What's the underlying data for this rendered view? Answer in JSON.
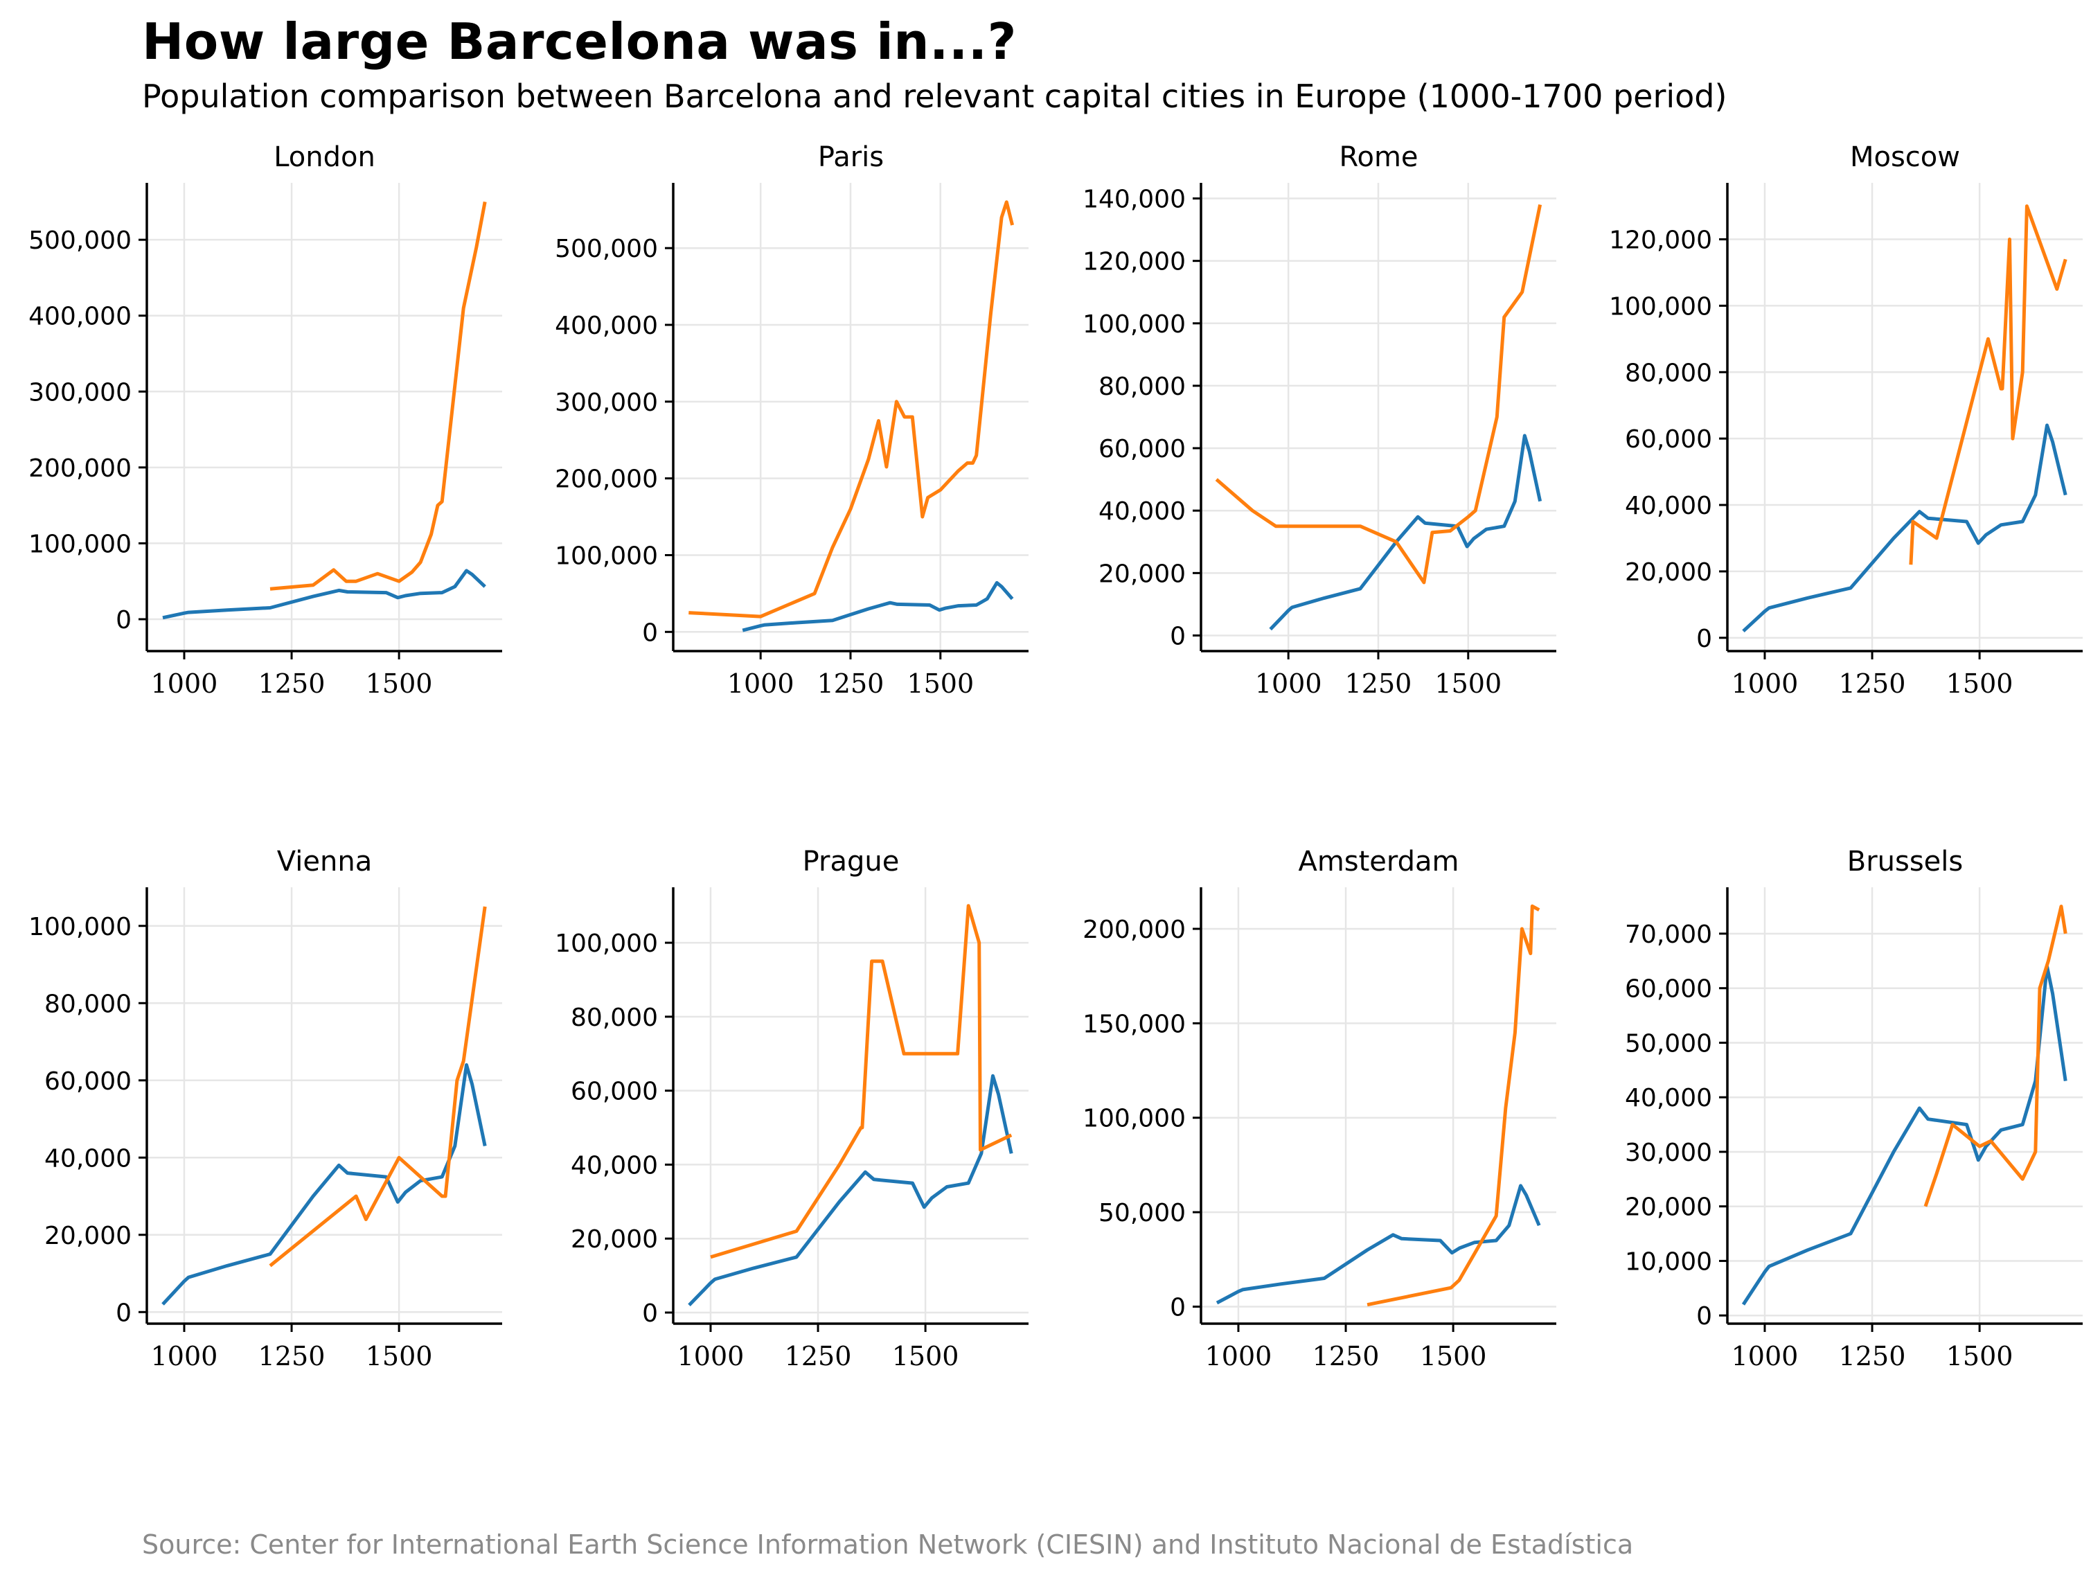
{
  "title": "How large Barcelona was in...?",
  "subtitle": "Population comparison between Barcelona and relevant capital cities in Europe (1000-1700 period)",
  "source": "Source: Center for International Earth Science Information Network (CIESIN) and Instituto Nacional de Estadística",
  "colors": {
    "barcelona": "#1f77b4",
    "city": "#ff7f0e"
  },
  "chart_data": [
    {
      "type": "line",
      "title": "London",
      "xlabel": "",
      "ylabel": "",
      "xlim": [
        913,
        1740
      ],
      "ylim": [
        -42000,
        575000
      ],
      "grid": true,
      "legend": "none",
      "xticks": [
        1000,
        1250,
        1500
      ],
      "xtick_labels": [
        "1000",
        "1250",
        "1500"
      ],
      "yticks": [
        0,
        100000,
        200000,
        300000,
        400000,
        500000
      ],
      "ytick_labels": [
        "0",
        "100,000",
        "200,000",
        "300,000",
        "400,000",
        "500,000"
      ],
      "series": [
        {
          "name": "Barcelona",
          "color": "#1f77b4",
          "x": [
            950,
            1000,
            1010,
            1100,
            1200,
            1300,
            1360,
            1380,
            1470,
            1497,
            1515,
            1550,
            1600,
            1630,
            1657,
            1670,
            1700
          ],
          "y": [
            2000,
            8000,
            9000,
            12000,
            15000,
            30000,
            38000,
            36000,
            35000,
            28500,
            31000,
            34000,
            35000,
            43000,
            64000,
            59000,
            43000
          ]
        },
        {
          "name": "London",
          "color": "#ff7f0e",
          "x": [
            1200,
            1300,
            1348,
            1377,
            1400,
            1450,
            1500,
            1530,
            1550,
            1575,
            1590,
            1600,
            1650,
            1680,
            1700
          ],
          "y": [
            40000,
            45000,
            65000,
            50000,
            50000,
            60000,
            50000,
            62000,
            75000,
            112000,
            150000,
            155000,
            410000,
            490000,
            550000
          ]
        }
      ]
    },
    {
      "type": "line",
      "title": "Paris",
      "xlabel": "",
      "ylabel": "",
      "xlim": [
        757,
        1745
      ],
      "ylim": [
        -25000,
        585000
      ],
      "grid": true,
      "legend": "none",
      "xticks": [
        1000,
        1250,
        1500
      ],
      "xtick_labels": [
        "1000",
        "1250",
        "1500"
      ],
      "yticks": [
        0,
        100000,
        200000,
        300000,
        400000,
        500000
      ],
      "ytick_labels": [
        "0",
        "100,000",
        "200,000",
        "300,000",
        "400,000",
        "500,000"
      ],
      "series": [
        {
          "name": "Barcelona",
          "color": "#1f77b4",
          "x": [
            950,
            1000,
            1010,
            1100,
            1200,
            1300,
            1360,
            1380,
            1470,
            1497,
            1515,
            1550,
            1600,
            1630,
            1657,
            1670,
            1700
          ],
          "y": [
            2000,
            8000,
            9000,
            12000,
            15000,
            30000,
            38000,
            36000,
            35000,
            28500,
            31000,
            34000,
            35000,
            43000,
            64000,
            59000,
            43000
          ]
        },
        {
          "name": "Paris",
          "color": "#ff7f0e",
          "x": [
            800,
            1000,
            1150,
            1200,
            1250,
            1300,
            1328,
            1350,
            1378,
            1400,
            1422,
            1450,
            1465,
            1500,
            1550,
            1575,
            1590,
            1600,
            1640,
            1670,
            1684,
            1700
          ],
          "y": [
            25000,
            20000,
            50000,
            110000,
            160000,
            225000,
            275000,
            215000,
            300000,
            280000,
            280000,
            150000,
            175000,
            185000,
            210000,
            220000,
            220000,
            230000,
            415000,
            540000,
            560000,
            530000
          ]
        }
      ]
    },
    {
      "type": "line",
      "title": "Rome",
      "xlabel": "",
      "ylabel": "",
      "xlim": [
        757,
        1745
      ],
      "ylim": [
        -5000,
        145000
      ],
      "grid": true,
      "legend": "none",
      "xticks": [
        1000,
        1250,
        1500
      ],
      "xtick_labels": [
        "1000",
        "1250",
        "1500"
      ],
      "yticks": [
        0,
        20000,
        40000,
        60000,
        80000,
        100000,
        120000,
        140000
      ],
      "ytick_labels": [
        "0",
        "20,000",
        "40,000",
        "60,000",
        "80,000",
        "100,000",
        "120,000",
        "140,000"
      ],
      "series": [
        {
          "name": "Barcelona",
          "color": "#1f77b4",
          "x": [
            950,
            1000,
            1010,
            1100,
            1200,
            1300,
            1360,
            1380,
            1470,
            1497,
            1515,
            1550,
            1600,
            1630,
            1657,
            1670,
            1700
          ],
          "y": [
            2000,
            8000,
            9000,
            12000,
            15000,
            30000,
            38000,
            36000,
            35000,
            28500,
            31000,
            34000,
            35000,
            43000,
            64000,
            59000,
            43000
          ]
        },
        {
          "name": "Rome",
          "color": "#ff7f0e",
          "x": [
            800,
            900,
            965,
            1100,
            1200,
            1300,
            1377,
            1400,
            1450,
            1500,
            1520,
            1580,
            1600,
            1650,
            1700
          ],
          "y": [
            50000,
            40000,
            35000,
            35000,
            35000,
            30000,
            17000,
            33000,
            33500,
            38000,
            40000,
            70000,
            102000,
            110000,
            138000
          ]
        }
      ]
    },
    {
      "type": "line",
      "title": "Moscow",
      "xlabel": "",
      "ylabel": "",
      "xlim": [
        913,
        1740
      ],
      "ylim": [
        -4000,
        137000
      ],
      "grid": true,
      "legend": "none",
      "xticks": [
        1000,
        1250,
        1500
      ],
      "xtick_labels": [
        "1000",
        "1250",
        "1500"
      ],
      "yticks": [
        0,
        20000,
        40000,
        60000,
        80000,
        100000,
        120000
      ],
      "ytick_labels": [
        "0",
        "20,000",
        "40,000",
        "60,000",
        "80,000",
        "100,000",
        "120,000"
      ],
      "series": [
        {
          "name": "Barcelona",
          "color": "#1f77b4",
          "x": [
            950,
            1000,
            1010,
            1100,
            1200,
            1300,
            1360,
            1380,
            1470,
            1497,
            1515,
            1550,
            1600,
            1630,
            1657,
            1670,
            1700
          ],
          "y": [
            2000,
            8000,
            9000,
            12000,
            15000,
            30000,
            38000,
            36000,
            35000,
            28500,
            31000,
            34000,
            35000,
            43000,
            64000,
            59000,
            43000
          ]
        },
        {
          "name": "Moscow",
          "color": "#ff7f0e",
          "x": [
            1340,
            1345,
            1400,
            1520,
            1550,
            1553,
            1570,
            1577,
            1600,
            1610,
            1680,
            1700
          ],
          "y": [
            22000,
            35000,
            30000,
            90000,
            75000,
            75000,
            120000,
            60000,
            80000,
            130000,
            105000,
            114000
          ]
        }
      ]
    },
    {
      "type": "line",
      "title": "Vienna",
      "xlabel": "",
      "ylabel": "",
      "xlim": [
        913,
        1740
      ],
      "ylim": [
        -3000,
        110000
      ],
      "grid": true,
      "legend": "none",
      "xticks": [
        1000,
        1250,
        1500
      ],
      "xtick_labels": [
        "1000",
        "1250",
        "1500"
      ],
      "yticks": [
        0,
        20000,
        40000,
        60000,
        80000,
        100000
      ],
      "ytick_labels": [
        "0",
        "20,000",
        "40,000",
        "60,000",
        "80,000",
        "100,000"
      ],
      "series": [
        {
          "name": "Barcelona",
          "color": "#1f77b4",
          "x": [
            950,
            1000,
            1010,
            1100,
            1200,
            1300,
            1360,
            1380,
            1470,
            1497,
            1515,
            1550,
            1600,
            1630,
            1657,
            1670,
            1700
          ],
          "y": [
            2000,
            8000,
            9000,
            12000,
            15000,
            30000,
            38000,
            36000,
            35000,
            28500,
            31000,
            34000,
            35000,
            43000,
            64000,
            59000,
            43000
          ]
        },
        {
          "name": "Vienna",
          "color": "#ff7f0e",
          "x": [
            1200,
            1400,
            1423,
            1500,
            1600,
            1608,
            1635,
            1650,
            1700
          ],
          "y": [
            12000,
            30000,
            24000,
            40000,
            30000,
            30000,
            60000,
            65000,
            105000
          ]
        }
      ]
    },
    {
      "type": "line",
      "title": "Prague",
      "xlabel": "",
      "ylabel": "",
      "xlim": [
        913,
        1740
      ],
      "ylim": [
        -3000,
        115000
      ],
      "grid": true,
      "legend": "none",
      "xticks": [
        1000,
        1250,
        1500
      ],
      "xtick_labels": [
        "1000",
        "1250",
        "1500"
      ],
      "yticks": [
        0,
        20000,
        40000,
        60000,
        80000,
        100000
      ],
      "ytick_labels": [
        "0",
        "20,000",
        "40,000",
        "60,000",
        "80,000",
        "100,000"
      ],
      "series": [
        {
          "name": "Barcelona",
          "color": "#1f77b4",
          "x": [
            950,
            1000,
            1010,
            1100,
            1200,
            1300,
            1360,
            1380,
            1470,
            1497,
            1515,
            1550,
            1600,
            1630,
            1657,
            1670,
            1700
          ],
          "y": [
            2000,
            8000,
            9000,
            12000,
            15000,
            30000,
            38000,
            36000,
            35000,
            28500,
            31000,
            34000,
            35000,
            43000,
            64000,
            59000,
            43000
          ]
        },
        {
          "name": "Prague",
          "color": "#ff7f0e",
          "x": [
            1000,
            1200,
            1300,
            1350,
            1353,
            1375,
            1400,
            1450,
            1575,
            1600,
            1625,
            1628,
            1700
          ],
          "y": [
            15000,
            22000,
            40000,
            50000,
            50000,
            95000,
            95000,
            70000,
            70000,
            110000,
            100000,
            44000,
            48000
          ]
        }
      ]
    },
    {
      "type": "line",
      "title": "Amsterdam",
      "xlabel": "",
      "ylabel": "",
      "xlim": [
        913,
        1740
      ],
      "ylim": [
        -9000,
        222000
      ],
      "grid": true,
      "legend": "none",
      "xticks": [
        1000,
        1250,
        1500
      ],
      "xtick_labels": [
        "1000",
        "1250",
        "1500"
      ],
      "yticks": [
        0,
        50000,
        100000,
        150000,
        200000
      ],
      "ytick_labels": [
        "0",
        "50,000",
        "100,000",
        "150,000",
        "200,000"
      ],
      "series": [
        {
          "name": "Barcelona",
          "color": "#1f77b4",
          "x": [
            950,
            1000,
            1010,
            1100,
            1200,
            1300,
            1360,
            1380,
            1470,
            1497,
            1515,
            1550,
            1600,
            1630,
            1657,
            1670,
            1700
          ],
          "y": [
            2000,
            8000,
            9000,
            12000,
            15000,
            30000,
            38000,
            36000,
            35000,
            28500,
            31000,
            34000,
            35000,
            43000,
            64000,
            59000,
            43000
          ]
        },
        {
          "name": "Amsterdam",
          "color": "#ff7f0e",
          "x": [
            1300,
            1495,
            1514,
            1600,
            1622,
            1644,
            1660,
            1680,
            1684,
            1700
          ],
          "y": [
            1000,
            10000,
            14000,
            48000,
            105000,
            145000,
            200000,
            187000,
            212000,
            210000
          ]
        }
      ]
    },
    {
      "type": "line",
      "title": "Brussels",
      "xlabel": "",
      "ylabel": "",
      "xlim": [
        913,
        1740
      ],
      "ylim": [
        -1500,
        78500
      ],
      "grid": true,
      "legend": "none",
      "xticks": [
        1000,
        1250,
        1500
      ],
      "xtick_labels": [
        "1000",
        "1250",
        "1500"
      ],
      "yticks": [
        0,
        10000,
        20000,
        30000,
        40000,
        50000,
        60000,
        70000
      ],
      "ytick_labels": [
        "0",
        "10,000",
        "20,000",
        "30,000",
        "40,000",
        "50,000",
        "60,000",
        "70,000"
      ],
      "series": [
        {
          "name": "Barcelona",
          "color": "#1f77b4",
          "x": [
            950,
            1000,
            1010,
            1100,
            1200,
            1300,
            1360,
            1380,
            1470,
            1497,
            1515,
            1550,
            1600,
            1630,
            1657,
            1670,
            1700
          ],
          "y": [
            2000,
            8000,
            9000,
            12000,
            15000,
            30000,
            38000,
            36000,
            35000,
            28500,
            31000,
            34000,
            35000,
            43000,
            64000,
            59000,
            43000
          ]
        },
        {
          "name": "Brussels",
          "color": "#ff7f0e",
          "x": [
            1374,
            1400,
            1437,
            1500,
            1526,
            1600,
            1630,
            1640,
            1660,
            1690,
            1700
          ],
          "y": [
            20000,
            26000,
            35000,
            31000,
            32000,
            25000,
            30000,
            60000,
            65000,
            75000,
            70000
          ]
        }
      ]
    }
  ]
}
